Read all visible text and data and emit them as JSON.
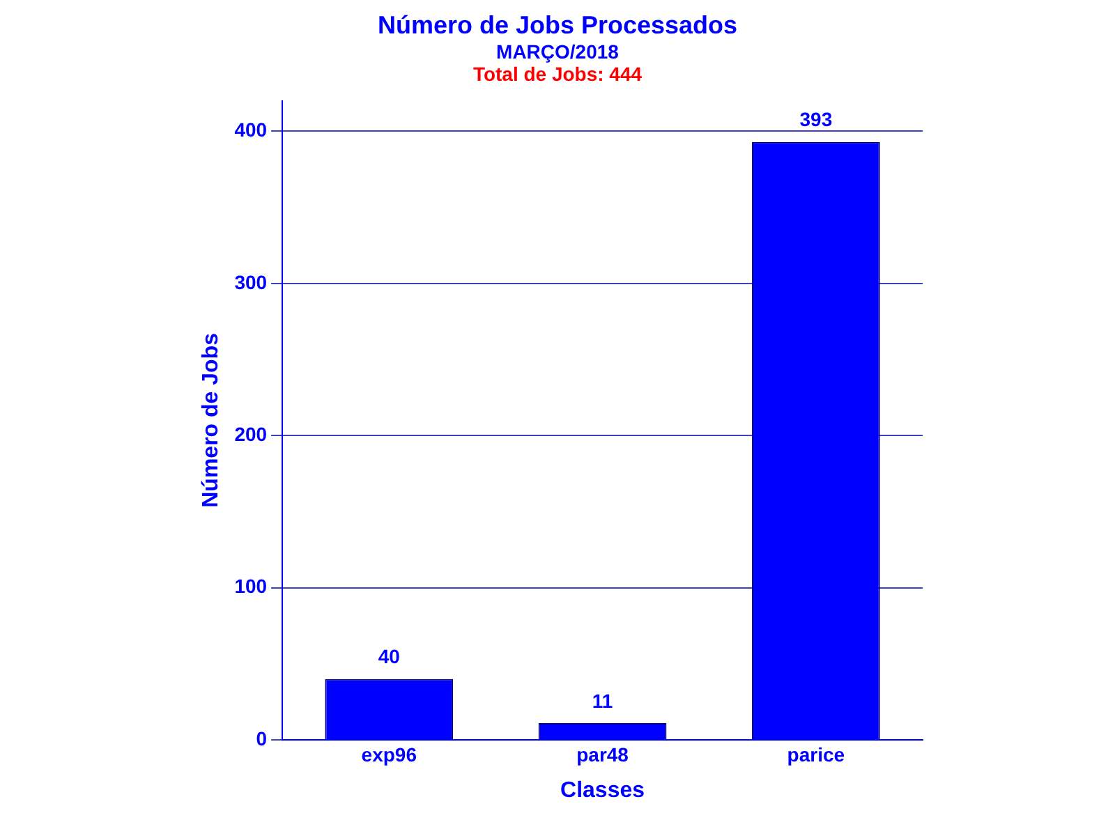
{
  "chart_data": {
    "type": "bar",
    "title": "Número de Jobs Processados",
    "subtitle": "MARÇO/2018",
    "annotations": [
      "Total de Jobs: 444"
    ],
    "xlabel": "Classes",
    "ylabel": "Número de Jobs",
    "categories": [
      "exp96",
      "par48",
      "parice"
    ],
    "values": [
      40,
      11,
      393
    ],
    "color": "#0000ff",
    "ylim": [
      0,
      420
    ],
    "yticks": [
      0,
      100,
      200,
      300,
      400
    ],
    "grid": "y",
    "data_labels": true
  }
}
